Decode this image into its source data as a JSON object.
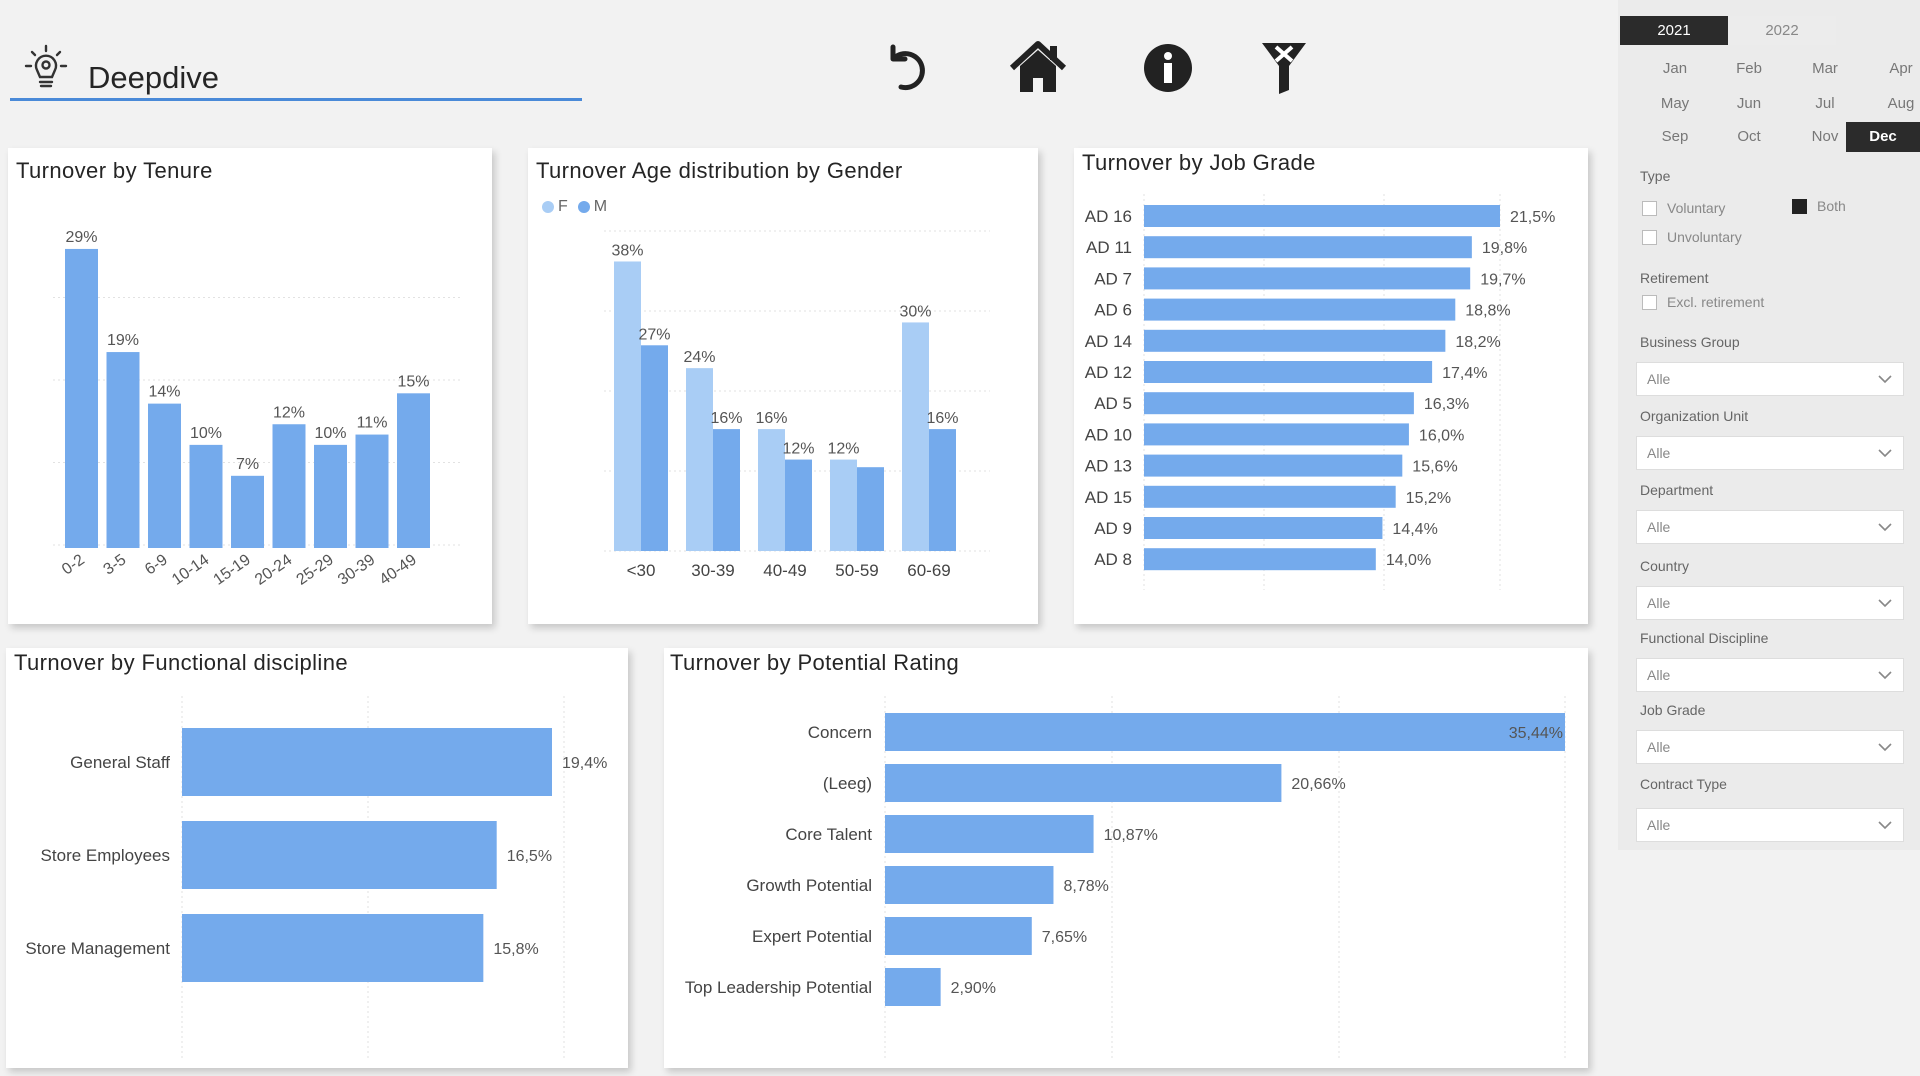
{
  "header": {
    "title": "Deepdive",
    "icons": [
      "lightbulb-gear-icon",
      "undo-icon",
      "home-icon",
      "info-icon",
      "clear-filter-icon"
    ]
  },
  "colors": {
    "accent": "#4a8ad8",
    "bar": "#74aaec",
    "bar_light": "#a9cdf5",
    "dark": "#2b2b2b"
  },
  "tenure": {
    "title": "Turnover by Tenure",
    "chart_data": {
      "type": "bar",
      "categories": [
        "0-2",
        "3-5",
        "6-9",
        "10-14",
        "15-19",
        "20-24",
        "25-29",
        "30-39",
        "40-49"
      ],
      "values": [
        29,
        19,
        14,
        10,
        7,
        12,
        10,
        11,
        15
      ],
      "labels": [
        "29%",
        "19%",
        "14%",
        "10%",
        "7%",
        "12%",
        "10%",
        "11%",
        "15%"
      ],
      "ylim": [
        0,
        32
      ]
    }
  },
  "age_gender": {
    "title": "Turnover Age distribution by Gender",
    "chart_data": {
      "type": "bar",
      "categories": [
        "<30",
        "30-39",
        "40-49",
        "50-59",
        "60-69"
      ],
      "series": [
        {
          "name": "F",
          "values": [
            38,
            24,
            16,
            12,
            30
          ],
          "labels": [
            "38%",
            "24%",
            "16%",
            "12%",
            "30%"
          ]
        },
        {
          "name": "M",
          "values": [
            27,
            16,
            12,
            11,
            16
          ],
          "labels": [
            "27%",
            "16%",
            "12%",
            "",
            "16%"
          ]
        }
      ],
      "ylim": [
        0,
        42
      ]
    }
  },
  "job_grade": {
    "title": "Turnover by Job Grade",
    "chart_data": {
      "type": "bar",
      "orientation": "horizontal",
      "categories": [
        "AD 16",
        "AD 11",
        "AD 7",
        "AD 6",
        "AD 14",
        "AD 12",
        "AD 5",
        "AD 10",
        "AD 13",
        "AD 15",
        "AD 9",
        "AD 8"
      ],
      "values": [
        21.5,
        19.8,
        19.7,
        18.8,
        18.2,
        17.4,
        16.3,
        16.0,
        15.6,
        15.2,
        14.4,
        14.0
      ],
      "labels": [
        "21,5%",
        "19,8%",
        "19,7%",
        "18,8%",
        "18,2%",
        "17,4%",
        "16,3%",
        "16,0%",
        "15,6%",
        "15,2%",
        "14,4%",
        "14,0%"
      ],
      "xlim": [
        0,
        21.5
      ]
    }
  },
  "functional": {
    "title": "Turnover by Functional discipline",
    "chart_data": {
      "type": "bar",
      "orientation": "horizontal",
      "categories": [
        "General Staff",
        "Store Employees",
        "Store Management"
      ],
      "values": [
        19.4,
        16.5,
        15.8
      ],
      "labels": [
        "19,4%",
        "16,5%",
        "15,8%"
      ],
      "xlim": [
        0,
        19.4
      ]
    }
  },
  "potential": {
    "title": "Turnover by Potential Rating",
    "chart_data": {
      "type": "bar",
      "orientation": "horizontal",
      "categories": [
        "Concern",
        "(Leeg)",
        "Core Talent",
        "Growth Potential",
        "Expert Potential",
        "Top Leadership Potential"
      ],
      "values": [
        35.44,
        20.66,
        10.87,
        8.78,
        7.65,
        2.9
      ],
      "labels": [
        "35,44%",
        "20,66%",
        "10,87%",
        "8,78%",
        "7,65%",
        "2,90%"
      ],
      "xlim": [
        0,
        35.44
      ]
    }
  },
  "slicer": {
    "years": [
      "2021",
      "2022"
    ],
    "active_year": "2021",
    "months": [
      "Jan",
      "Feb",
      "Mar",
      "Apr",
      "May",
      "Jun",
      "Jul",
      "Aug",
      "Sep",
      "Oct",
      "Nov",
      "Dec"
    ],
    "active_month": "Dec",
    "type_label": "Type",
    "voluntary": "Voluntary",
    "involuntary": "Unvoluntary",
    "both": "Both",
    "retirement_label": "Retirement",
    "excl_retirement": "Excl. retirement",
    "dropdowns": [
      {
        "label": "Business Group",
        "value": "Alle"
      },
      {
        "label": "Organization Unit",
        "value": "Alle"
      },
      {
        "label": "Department",
        "value": "Alle"
      },
      {
        "label": "Country",
        "value": "Alle"
      },
      {
        "label": "Functional Discipline",
        "value": "Alle"
      },
      {
        "label": "Job Grade",
        "value": "Alle"
      },
      {
        "label": "Contract Type",
        "value": "Alle"
      }
    ]
  }
}
